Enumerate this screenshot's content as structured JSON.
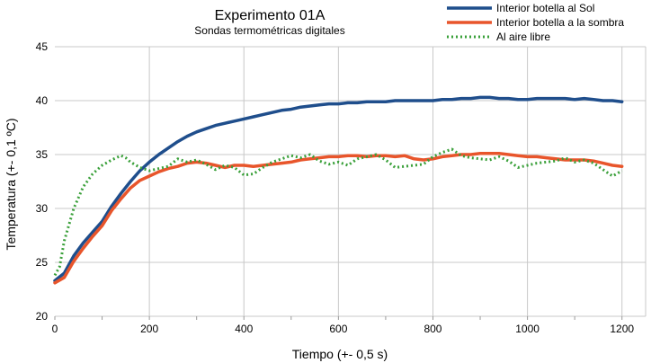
{
  "chart_data": {
    "type": "line",
    "title": "Experimento 01A",
    "subtitle": "Sondas termométricas digitales",
    "xlabel": "Tiempo (+- 0,5 s)",
    "ylabel": "Temperatura (+- 0,1 ºC)",
    "xlim": [
      0,
      1250
    ],
    "ylim": [
      20,
      45
    ],
    "xticks": [
      0,
      200,
      400,
      600,
      800,
      1000,
      1200
    ],
    "yticks": [
      20,
      25,
      30,
      35,
      40,
      45
    ],
    "grid": true,
    "legend_position": "top-right",
    "series": [
      {
        "name": "Interior botella al Sol",
        "color": "#1f4e8c",
        "style": "solid",
        "x": [
          0,
          20,
          40,
          60,
          80,
          100,
          120,
          140,
          160,
          180,
          200,
          220,
          240,
          260,
          280,
          300,
          320,
          340,
          360,
          380,
          400,
          420,
          440,
          460,
          480,
          500,
          520,
          540,
          560,
          580,
          600,
          620,
          640,
          660,
          680,
          700,
          720,
          740,
          760,
          780,
          800,
          820,
          840,
          860,
          880,
          900,
          920,
          940,
          960,
          980,
          1000,
          1020,
          1040,
          1060,
          1080,
          1100,
          1120,
          1140,
          1160,
          1180,
          1200
        ],
        "y": [
          23.3,
          24.0,
          25.6,
          26.8,
          27.8,
          28.8,
          30.2,
          31.4,
          32.5,
          33.5,
          34.3,
          35.0,
          35.6,
          36.2,
          36.7,
          37.1,
          37.4,
          37.7,
          37.9,
          38.1,
          38.3,
          38.5,
          38.7,
          38.9,
          39.1,
          39.2,
          39.4,
          39.5,
          39.6,
          39.7,
          39.7,
          39.8,
          39.8,
          39.9,
          39.9,
          39.9,
          40.0,
          40.0,
          40.0,
          40.0,
          40.0,
          40.1,
          40.1,
          40.2,
          40.2,
          40.3,
          40.3,
          40.2,
          40.2,
          40.1,
          40.1,
          40.2,
          40.2,
          40.2,
          40.2,
          40.1,
          40.2,
          40.1,
          40.0,
          40.0,
          39.9
        ]
      },
      {
        "name": "Interior botella a la sombra",
        "color": "#e8552b",
        "style": "solid",
        "x": [
          0,
          20,
          40,
          60,
          80,
          100,
          120,
          140,
          160,
          180,
          200,
          220,
          240,
          260,
          280,
          300,
          320,
          340,
          360,
          380,
          400,
          420,
          440,
          460,
          480,
          500,
          520,
          540,
          560,
          580,
          600,
          620,
          640,
          660,
          680,
          700,
          720,
          740,
          760,
          780,
          800,
          820,
          840,
          860,
          880,
          900,
          920,
          940,
          960,
          980,
          1000,
          1020,
          1040,
          1060,
          1080,
          1100,
          1120,
          1140,
          1160,
          1180,
          1200
        ],
        "y": [
          23.1,
          23.6,
          25.1,
          26.3,
          27.4,
          28.4,
          29.8,
          30.9,
          31.9,
          32.6,
          33.0,
          33.4,
          33.7,
          33.9,
          34.2,
          34.3,
          34.2,
          34.0,
          33.8,
          34.0,
          34.0,
          33.9,
          34.0,
          34.1,
          34.2,
          34.3,
          34.5,
          34.6,
          34.7,
          34.8,
          34.8,
          34.9,
          34.9,
          34.8,
          34.9,
          34.9,
          34.8,
          34.9,
          34.6,
          34.5,
          34.6,
          34.8,
          34.9,
          35.0,
          35.0,
          35.1,
          35.1,
          35.1,
          35.0,
          34.9,
          34.8,
          34.8,
          34.7,
          34.6,
          34.5,
          34.5,
          34.5,
          34.4,
          34.2,
          34.0,
          33.9
        ]
      },
      {
        "name": "Al aire libre",
        "color": "#3aa03a",
        "style": "dotted",
        "x": [
          0,
          10,
          20,
          40,
          60,
          80,
          100,
          120,
          140,
          150,
          160,
          180,
          200,
          220,
          240,
          260,
          280,
          300,
          320,
          340,
          360,
          380,
          400,
          420,
          440,
          460,
          480,
          500,
          520,
          540,
          560,
          580,
          600,
          620,
          640,
          660,
          680,
          700,
          720,
          740,
          760,
          780,
          800,
          820,
          840,
          860,
          880,
          900,
          920,
          940,
          960,
          980,
          1000,
          1020,
          1040,
          1060,
          1080,
          1100,
          1120,
          1140,
          1160,
          1180,
          1200
        ],
        "y": [
          23.8,
          24.6,
          27.0,
          30.0,
          32.0,
          33.2,
          34.0,
          34.5,
          34.9,
          34.7,
          34.3,
          33.8,
          33.5,
          33.7,
          33.9,
          34.6,
          34.3,
          34.5,
          34.1,
          33.6,
          34.0,
          33.8,
          33.1,
          33.2,
          33.8,
          34.3,
          34.6,
          34.9,
          34.7,
          35.0,
          34.4,
          34.1,
          34.3,
          34.0,
          34.6,
          34.8,
          35.0,
          34.5,
          33.8,
          33.9,
          34.0,
          34.1,
          34.8,
          35.2,
          35.5,
          34.9,
          34.7,
          34.6,
          34.5,
          34.8,
          34.4,
          33.8,
          34.0,
          34.2,
          34.3,
          34.4,
          34.7,
          34.3,
          34.5,
          34.2,
          33.6,
          33.0,
          33.5
        ]
      }
    ]
  }
}
